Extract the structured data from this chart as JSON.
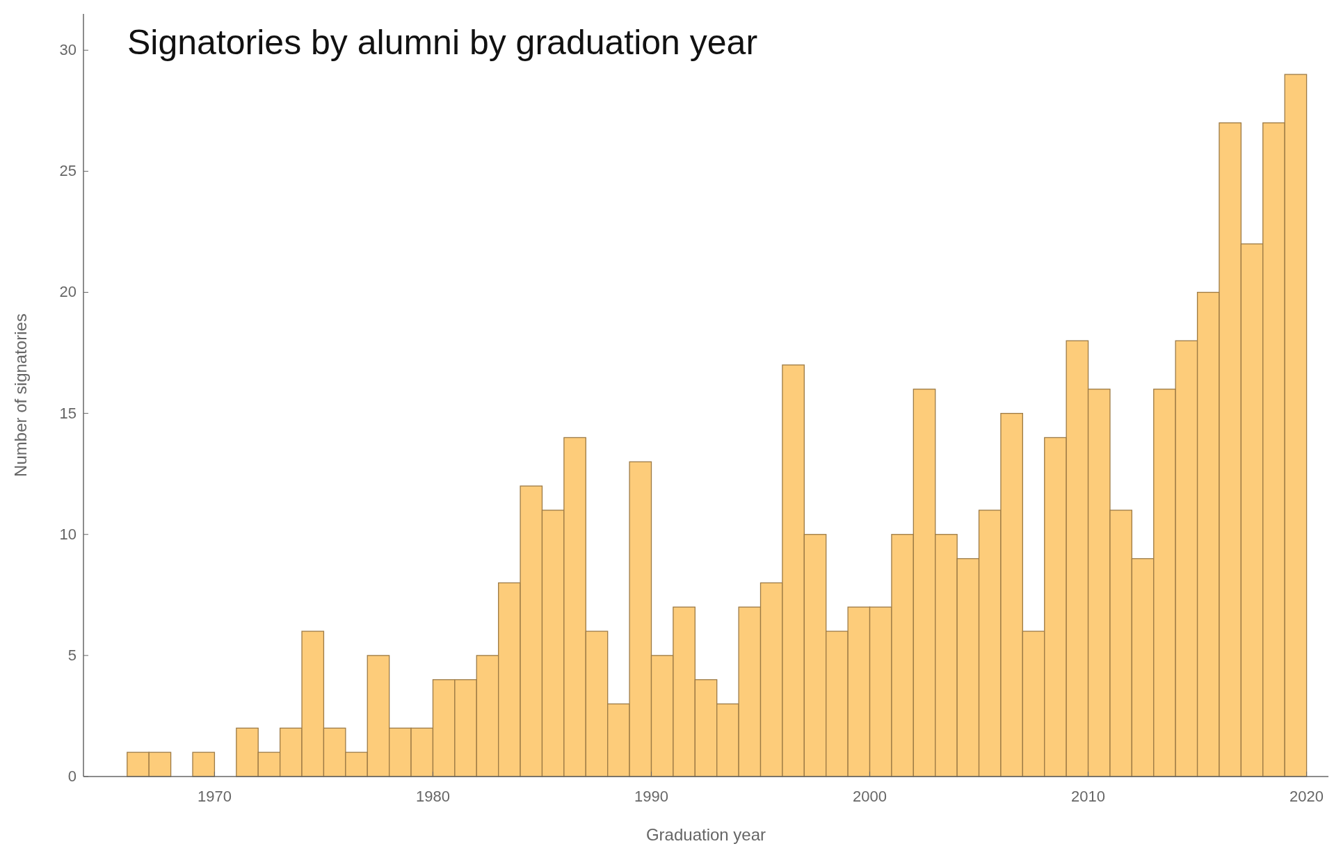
{
  "chart_data": {
    "type": "histogram",
    "title": "Signatories by alumni by graduation year",
    "xlabel": "Graduation year",
    "ylabel": "Number of signatories",
    "bins": [
      1966,
      1967,
      1968,
      1969,
      1970,
      1971,
      1972,
      1973,
      1974,
      1975,
      1976,
      1977,
      1978,
      1979,
      1980,
      1981,
      1982,
      1983,
      1984,
      1985,
      1986,
      1987,
      1988,
      1989,
      1990,
      1991,
      1992,
      1993,
      1994,
      1995,
      1996,
      1997,
      1998,
      1999,
      2000,
      2001,
      2002,
      2003,
      2004,
      2005,
      2006,
      2007,
      2008,
      2009,
      2010,
      2011,
      2012,
      2013,
      2014,
      2015,
      2016,
      2017,
      2018,
      2019,
      2020
    ],
    "values": [
      1,
      1,
      0,
      1,
      0,
      2,
      1,
      2,
      6,
      2,
      1,
      5,
      2,
      2,
      4,
      4,
      5,
      8,
      12,
      11,
      14,
      6,
      3,
      13,
      5,
      7,
      4,
      3,
      7,
      8,
      17,
      10,
      6,
      7,
      7,
      10,
      16,
      10,
      9,
      11,
      15,
      6,
      14,
      18,
      16,
      11,
      9,
      16,
      18,
      20,
      27,
      22,
      27,
      29
    ],
    "color": "#fdcc7a",
    "xlim": [
      1964,
      2021
    ],
    "xticks": [
      1970,
      1980,
      1990,
      2000,
      2010,
      2020
    ],
    "ylim": [
      0,
      31.5
    ],
    "yticks": [
      0,
      5,
      10,
      15,
      20,
      25,
      30
    ],
    "grid": false
  }
}
